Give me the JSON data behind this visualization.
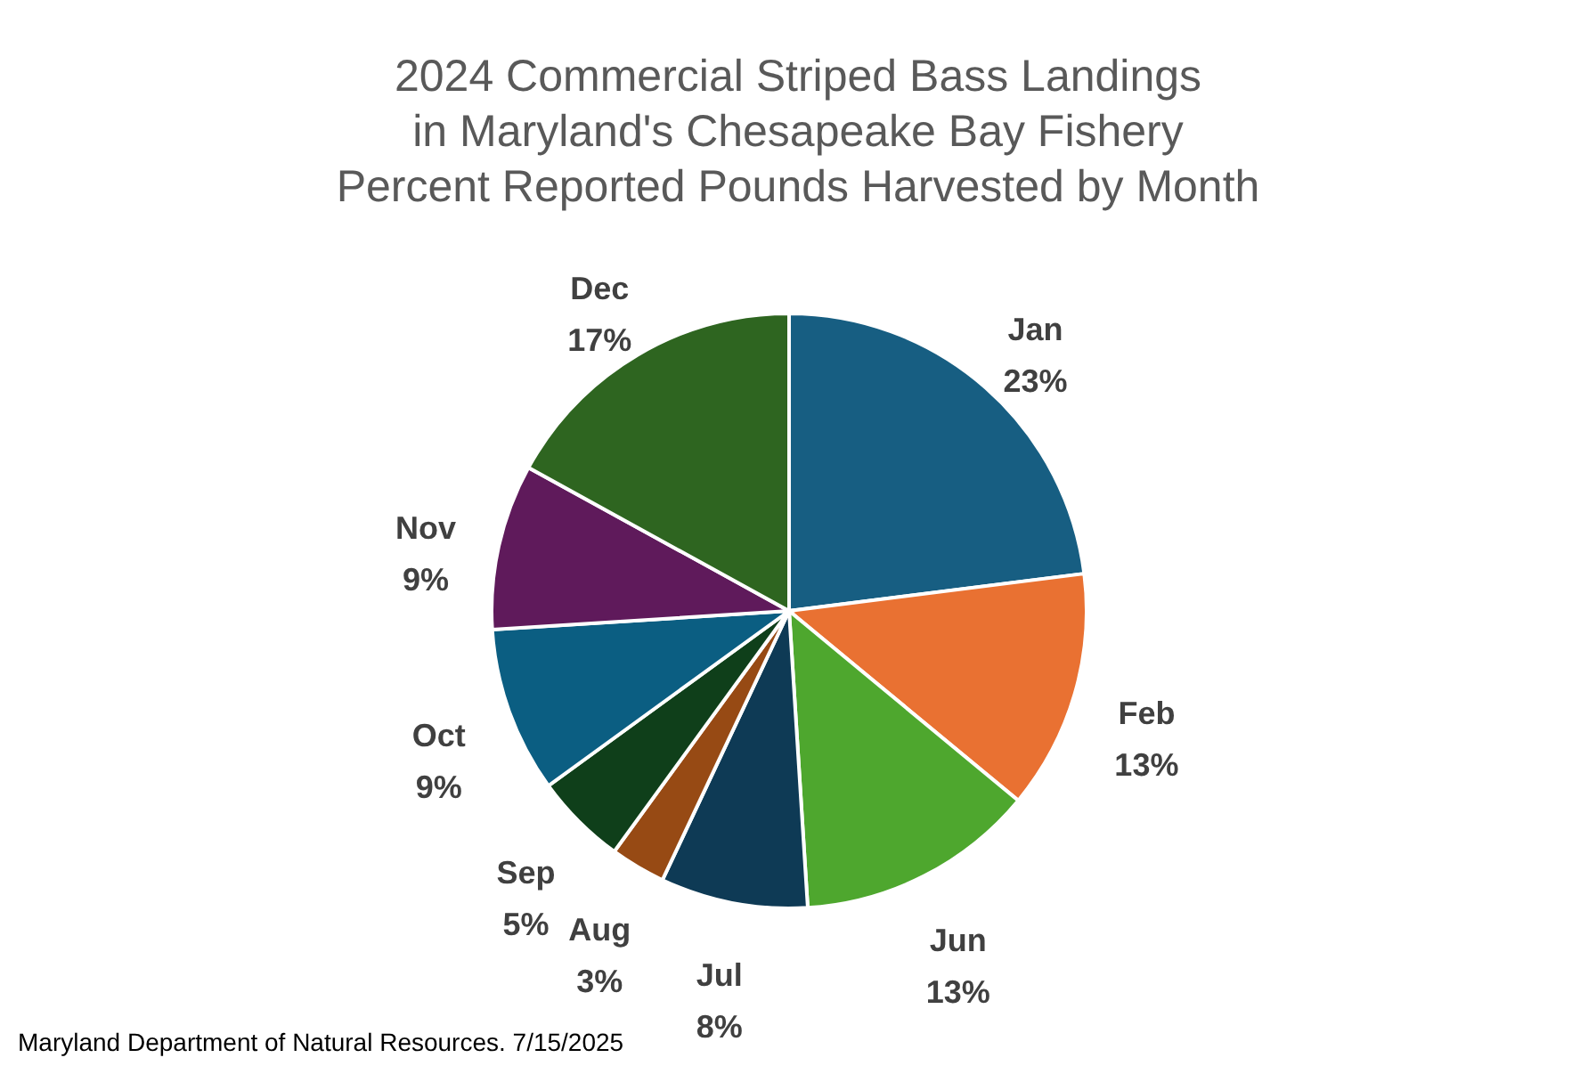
{
  "chart_data": {
    "type": "pie",
    "title": "2024 Commercial Striped Bass Landings\nin Maryland's Chesapeake Bay Fishery\nPercent Reported Pounds Harvested by Month",
    "categories": [
      "Jan",
      "Feb",
      "Jun",
      "Jul",
      "Aug",
      "Sep",
      "Oct",
      "Nov",
      "Dec"
    ],
    "values": [
      23,
      13,
      13,
      8,
      3,
      5,
      9,
      9,
      17
    ],
    "colors": [
      "#175e82",
      "#e97132",
      "#4ea72e",
      "#0e3a55",
      "#974a14",
      "#0f3f1a",
      "#0b5e82",
      "#5f1a5b",
      "#2e6520"
    ],
    "value_labels": [
      "23%",
      "13%",
      "13%",
      "8%",
      "3%",
      "5%",
      "9%",
      "9%",
      "17%"
    ],
    "annotations": [
      "Maryland Department of Natural Resources. 7/15/2025"
    ]
  }
}
